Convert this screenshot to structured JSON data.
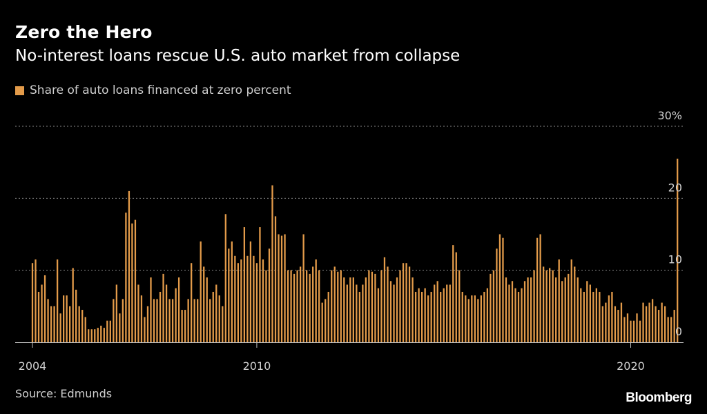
{
  "title": "Zero the Hero",
  "subtitle": "No-interest loans rescue U.S. auto market from collapse",
  "legend": {
    "label": "Share of auto loans financed at zero percent",
    "color": "#e39b4a"
  },
  "source": "Source: Edmunds",
  "logo": "Bloomberg",
  "colors": {
    "background": "#000000",
    "bar": "#e39b4a",
    "grid": "#8a8a8a",
    "text": "#d0d0d0"
  },
  "chart_data": {
    "type": "bar",
    "x_start": "2004-01",
    "frequency": "monthly",
    "x_ticks": [
      "2004",
      "2010",
      "2020"
    ],
    "y_ticks": [
      "0",
      "10",
      "20",
      "30%"
    ],
    "ylim": [
      0,
      30
    ],
    "grid": true,
    "series": [
      {
        "name": "Share of auto loans financed at zero percent",
        "values": [
          11.0,
          11.5,
          7.0,
          8.0,
          9.3,
          6.0,
          5.0,
          5.0,
          11.5,
          4.0,
          6.5,
          6.5,
          5.0,
          10.3,
          7.3,
          5.0,
          4.5,
          3.5,
          1.8,
          1.8,
          1.8,
          2.0,
          2.3,
          2.0,
          3.0,
          3.0,
          6.0,
          8.0,
          4.0,
          6.0,
          18.0,
          21.0,
          16.5,
          17.0,
          8.0,
          6.5,
          3.5,
          5.0,
          9.0,
          6.0,
          6.0,
          7.0,
          9.5,
          8.0,
          6.0,
          6.0,
          7.5,
          9.0,
          4.5,
          4.5,
          6.0,
          11.0,
          6.0,
          6.0,
          14.0,
          10.5,
          9.0,
          6.0,
          7.0,
          8.0,
          6.5,
          5.0,
          17.8,
          13.0,
          14.0,
          12.0,
          11.0,
          11.5,
          16.0,
          12.0,
          14.0,
          12.0,
          11.0,
          16.0,
          11.5,
          10.0,
          13.0,
          21.8,
          17.5,
          15.0,
          14.8,
          15.0,
          10.0,
          10.0,
          9.5,
          10.0,
          10.5,
          15.0,
          10.0,
          9.5,
          10.5,
          11.5,
          10.0,
          5.5,
          6.0,
          7.0,
          10.0,
          10.5,
          9.8,
          10.0,
          9.0,
          8.0,
          9.0,
          9.0,
          8.0,
          7.0,
          8.0,
          9.0,
          10.0,
          9.8,
          9.5,
          7.5,
          10.0,
          11.8,
          10.5,
          8.5,
          8.0,
          9.0,
          10.0,
          11.0,
          11.0,
          10.5,
          9.0,
          7.0,
          7.5,
          7.0,
          7.5,
          6.5,
          7.0,
          8.0,
          8.5,
          7.0,
          7.5,
          8.0,
          8.0,
          13.5,
          12.5,
          10.0,
          7.0,
          6.5,
          6.0,
          6.5,
          6.5,
          6.0,
          6.5,
          7.0,
          7.5,
          9.5,
          10.0,
          13.0,
          15.0,
          14.5,
          9.0,
          8.0,
          8.5,
          7.5,
          7.0,
          7.5,
          8.5,
          9.0,
          9.0,
          10.0,
          14.5,
          15.0,
          10.5,
          10.0,
          10.3,
          10.0,
          9.0,
          11.5,
          8.5,
          9.0,
          9.5,
          11.5,
          10.5,
          9.0,
          7.5,
          7.0,
          8.5,
          8.0,
          7.0,
          7.5,
          7.0,
          5.0,
          5.5,
          6.5,
          7.0,
          5.0,
          4.5,
          5.5,
          3.5,
          4.0,
          3.0,
          3.0,
          4.0,
          3.0,
          5.5,
          5.0,
          5.5,
          6.0,
          5.0,
          4.5,
          5.5,
          5.0,
          3.5,
          3.5,
          4.5,
          25.5
        ]
      }
    ]
  }
}
